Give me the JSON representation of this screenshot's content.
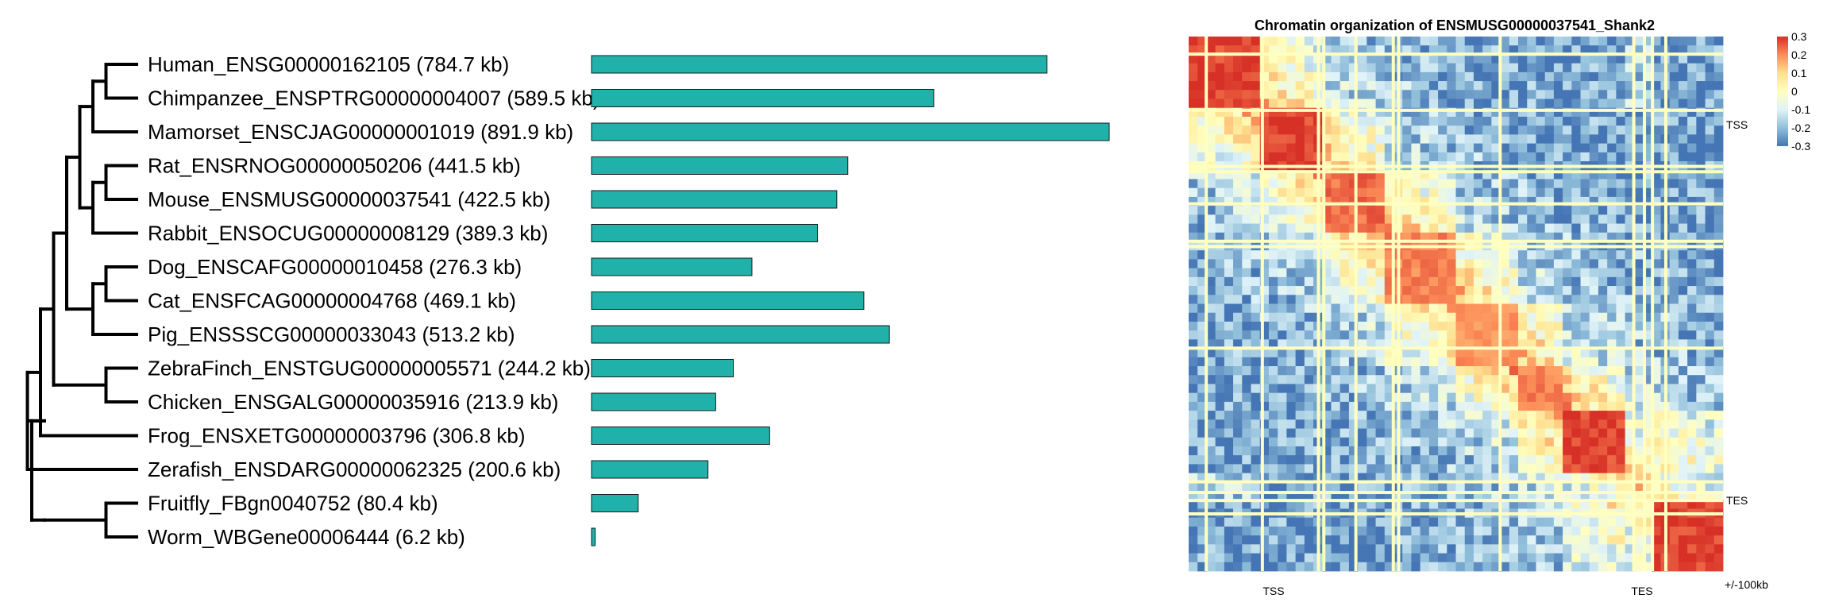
{
  "chart_data": [
    {
      "type": "bar",
      "orientation": "horizontal",
      "categories": [
        "Human_ENSG00000162105 (784.7 kb)",
        "Chimpanzee_ENSPTRG00000004007 (589.5 kb)",
        "Mamorset_ENSCJAG00000001019 (891.9 kb)",
        "Rat_ENSRNOG00000050206 (441.5 kb)",
        "Mouse_ENSMUSG00000037541 (422.5 kb)",
        "Rabbit_ENSOCUG00000008129 (389.3 kb)",
        "Dog_ENSCAFG00000010458 (276.3 kb)",
        "Cat_ENSFCAG00000004768 (469.1 kb)",
        "Pig_ENSSSCG00000033043 (513.2 kb)",
        "ZebraFinch_ENSTGUG00000005571 (244.2 kb)",
        "Chicken_ENSGALG00000035916 (213.9 kb)",
        "Frog_ENSXETG00000003796 (306.8 kb)",
        "Zerafish_ENSDARG00000062325 (200.6 kb)",
        "Fruitfly_FBgn0040752 (80.4 kb)",
        "Worm_WBGene00006444 (6.2 kb)"
      ],
      "values": [
        784.7,
        589.5,
        891.9,
        441.5,
        422.5,
        389.3,
        276.3,
        469.1,
        513.2,
        244.2,
        213.9,
        306.8,
        200.6,
        80.4,
        6.2
      ],
      "unit": "kb",
      "bar_color": "#20b2aa",
      "tree": {
        "children": [
          {
            "children": [
              {
                "children": [
                  {
                    "children": [
                      {
                        "children": [
                          {
                            "children": [
                              {
                                "children": [
                                  {
                                    "leaf": 0
                                  },
                                  {
                                    "leaf": 1
                                  }
                                ]
                              },
                              {
                                "leaf": 2
                              }
                            ]
                          },
                          {
                            "children": [
                              {
                                "children": [
                                  {
                                    "leaf": 3
                                  },
                                  {
                                    "leaf": 4
                                  }
                                ]
                              },
                              {
                                "leaf": 5
                              }
                            ]
                          }
                        ]
                      },
                      {
                        "children": [
                          {
                            "children": [
                              {
                                "leaf": 6
                              },
                              {
                                "leaf": 7
                              }
                            ]
                          },
                          {
                            "leaf": 8
                          }
                        ]
                      }
                    ]
                  },
                  {
                    "children": [
                      {
                        "leaf": 9
                      },
                      {
                        "leaf": 10
                      }
                    ]
                  }
                ]
              },
              {
                "leaf": 11
              }
            ]
          },
          {
            "leaf": 12
          }
        ],
        "outgroup": {
          "children": [
            {
              "leaf": 13
            },
            {
              "leaf": 14
            }
          ]
        }
      }
    },
    {
      "type": "heatmap",
      "title": "Chromatin organization of ENSMUSG00000037541_Shank2",
      "bottom_labels": [
        "TSS",
        "TES"
      ],
      "right_labels": [
        "TSS",
        "TES",
        "+/-100kb"
      ],
      "colorbar": {
        "ticks": [
          "0.3",
          "0.2",
          "0.1",
          "0",
          "-0.1",
          "-0.2",
          "-0.3"
        ],
        "range": [
          -0.3,
          0.3
        ],
        "colors": [
          "#d73027",
          "#fc8d59",
          "#fee090",
          "#ffffbf",
          "#e0f3f8",
          "#91bfdb",
          "#4575b4"
        ]
      },
      "domains": [
        {
          "start": 0.0,
          "end": 0.14,
          "level": 0.3
        },
        {
          "start": 0.14,
          "end": 0.25,
          "level": 0.3
        },
        {
          "start": 0.25,
          "end": 0.37,
          "level": 0.25
        },
        {
          "start": 0.37,
          "end": 0.5,
          "level": 0.22
        },
        {
          "start": 0.5,
          "end": 0.62,
          "level": 0.2
        },
        {
          "start": 0.62,
          "end": 0.7,
          "level": 0.22
        },
        {
          "start": 0.7,
          "end": 0.82,
          "level": 0.3
        },
        {
          "start": 0.86,
          "end": 1.0,
          "level": 0.3
        }
      ],
      "blank_lines": [
        0.03,
        0.135,
        0.24,
        0.25,
        0.31,
        0.38,
        0.39,
        0.58,
        0.83,
        0.85,
        0.865,
        0.89
      ]
    }
  ]
}
